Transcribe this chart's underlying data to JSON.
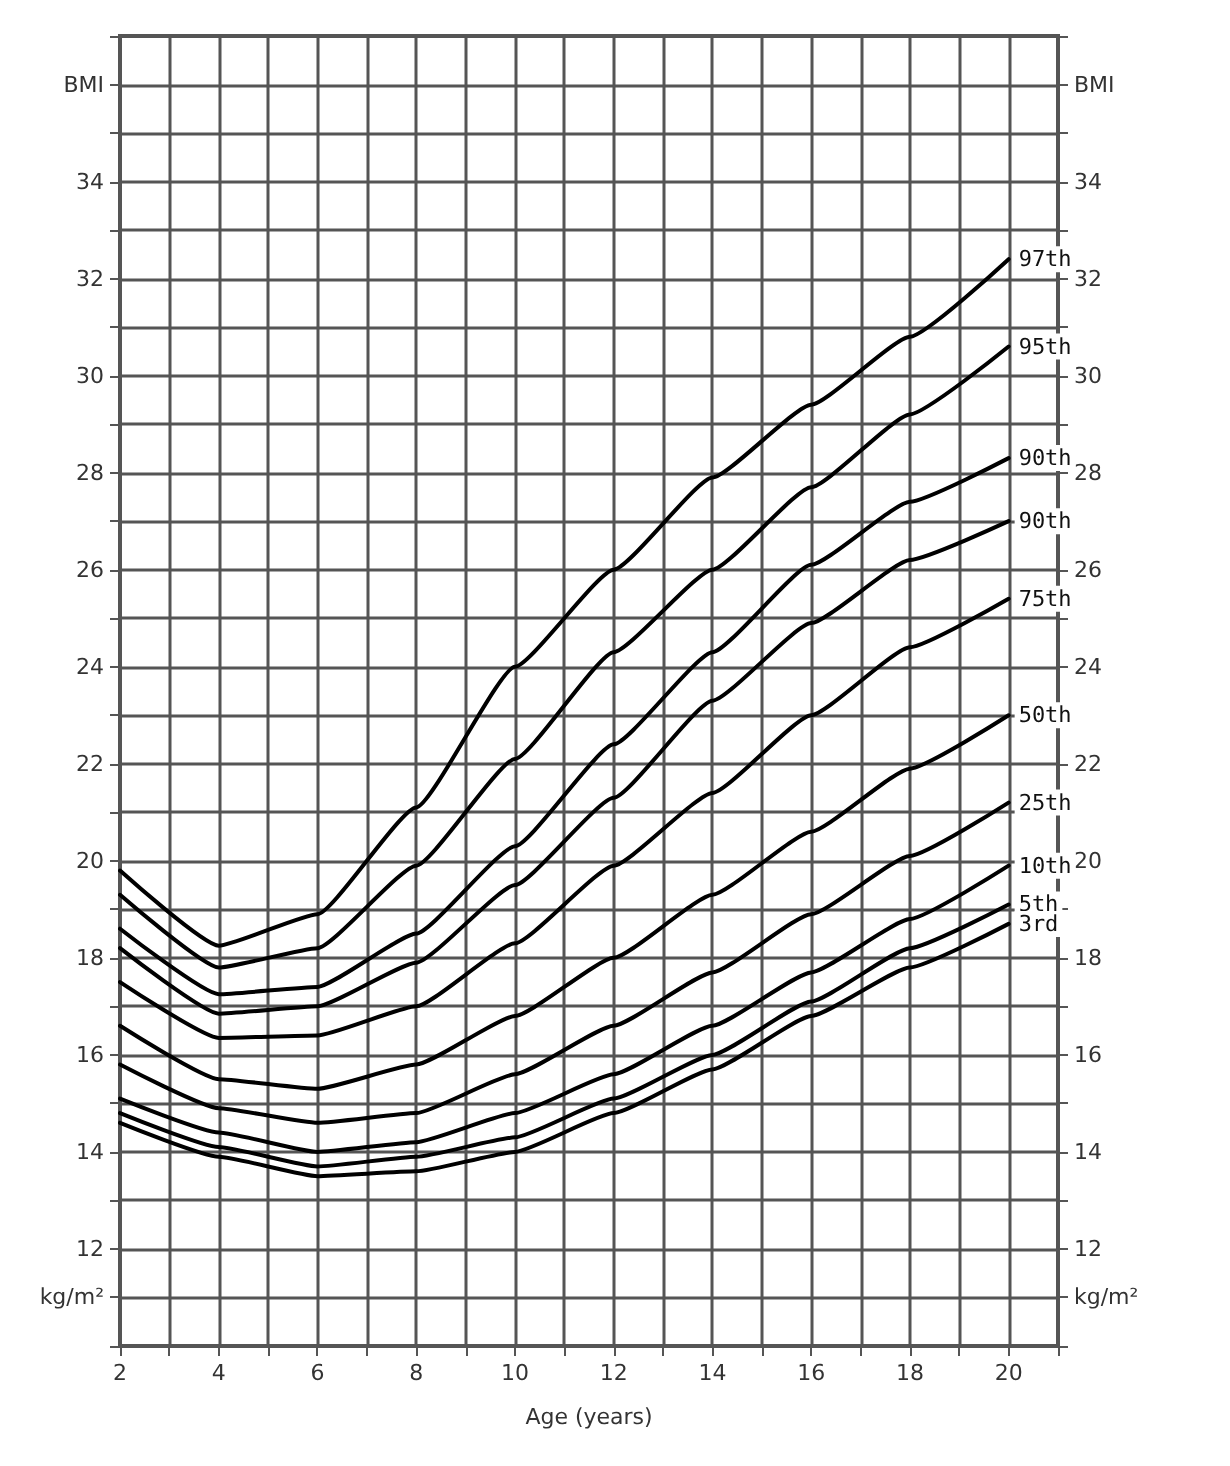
{
  "chart_data": {
    "type": "line",
    "xlabel": "Age (years)",
    "x": [
      2,
      4,
      6,
      8,
      10,
      12,
      14,
      16,
      18,
      20
    ],
    "series": [
      {
        "name": "97th",
        "color": "#000000",
        "values": [
          19.8,
          18.25,
          18.9,
          21.1,
          24.0,
          26.0,
          27.9,
          29.4,
          30.8,
          32.4
        ]
      },
      {
        "name": "95th",
        "color": "#000000",
        "values": [
          19.3,
          17.8,
          18.2,
          19.9,
          22.1,
          24.3,
          26.0,
          27.7,
          29.2,
          30.6
        ]
      },
      {
        "name": "90th",
        "color": "#000000",
        "values": [
          18.6,
          17.25,
          17.4,
          18.5,
          20.3,
          22.4,
          24.3,
          26.1,
          27.4,
          28.3
        ]
      },
      {
        "name": "90th",
        "color": "#000000",
        "values": [
          18.2,
          16.85,
          17.0,
          17.9,
          19.5,
          21.3,
          23.3,
          24.9,
          26.2,
          27.0
        ]
      },
      {
        "name": "75th",
        "color": "#000000",
        "values": [
          17.5,
          16.35,
          16.4,
          17.0,
          18.3,
          19.9,
          21.4,
          23.0,
          24.4,
          25.4
        ]
      },
      {
        "name": "50th",
        "color": "#000000",
        "values": [
          16.6,
          15.5,
          15.3,
          15.8,
          16.8,
          18.0,
          19.3,
          20.6,
          21.9,
          23.0
        ]
      },
      {
        "name": "25th",
        "color": "#000000",
        "values": [
          15.8,
          14.9,
          14.6,
          14.8,
          15.6,
          16.6,
          17.7,
          18.9,
          20.1,
          21.2
        ]
      },
      {
        "name": "10th",
        "color": "#000000",
        "values": [
          15.1,
          14.4,
          14.0,
          14.2,
          14.8,
          15.6,
          16.6,
          17.7,
          18.8,
          19.9
        ]
      },
      {
        "name": "5th",
        "color": "#000000",
        "values": [
          14.8,
          14.1,
          13.7,
          13.9,
          14.3,
          15.1,
          16.0,
          17.1,
          18.2,
          19.1
        ]
      },
      {
        "name": "3rd",
        "color": "#000000",
        "values": [
          14.6,
          13.9,
          13.5,
          13.6,
          14.0,
          14.8,
          15.7,
          16.8,
          17.8,
          18.7
        ]
      }
    ],
    "xlim": [
      2,
      21
    ],
    "xticks": [
      2,
      {
        "value": 3,
        "label": null
      },
      4,
      {
        "value": 5,
        "label": null
      },
      6,
      {
        "value": 7,
        "label": null
      },
      8,
      {
        "value": 9,
        "label": null
      },
      10,
      {
        "value": 11,
        "label": null
      },
      12,
      {
        "value": 13,
        "label": null
      },
      14,
      {
        "value": 15,
        "label": null
      },
      16,
      {
        "value": 17,
        "label": null
      },
      18,
      {
        "value": 19,
        "label": null
      },
      20,
      {
        "value": 21,
        "label": null
      }
    ],
    "ylim": [
      10,
      37
    ],
    "yticks": [
      {
        "value": 10,
        "label": null
      },
      {
        "value": 11,
        "label": "kg/m²"
      },
      12,
      {
        "value": 13,
        "label": null
      },
      14,
      {
        "value": 15,
        "label": null
      },
      16,
      {
        "value": 17,
        "label": null
      },
      18,
      {
        "value": 19,
        "label": null
      },
      20,
      {
        "value": 21,
        "label": null
      },
      22,
      {
        "value": 23,
        "label": null
      },
      24,
      {
        "value": 25,
        "label": null
      },
      26,
      {
        "value": 27,
        "label": null
      },
      28,
      {
        "value": 29,
        "label": null
      },
      30,
      {
        "value": 31,
        "label": null
      },
      32,
      {
        "value": 33,
        "label": null
      },
      34,
      {
        "value": 35,
        "label": null
      },
      {
        "value": 36,
        "label": "BMI"
      },
      {
        "value": 37,
        "label": null
      }
    ],
    "y2lim": [
      10,
      37
    ],
    "y2ticks": [
      {
        "value": 10,
        "label": null
      },
      {
        "value": 11,
        "label": "kg/m²"
      },
      12,
      {
        "value": 13,
        "label": null
      },
      14,
      {
        "value": 15,
        "label": null
      },
      16,
      {
        "value": 17,
        "label": null
      },
      18,
      {
        "value": 19,
        "label": null
      },
      20,
      {
        "value": 21,
        "label": null
      },
      22,
      {
        "value": 23,
        "label": null
      },
      24,
      {
        "value": 25,
        "label": null
      },
      26,
      {
        "value": 27,
        "label": null
      },
      28,
      {
        "value": 29,
        "label": null
      },
      30,
      {
        "value": 31,
        "label": null
      },
      32,
      {
        "value": 33,
        "label": null
      },
      34,
      {
        "value": 35,
        "label": null
      },
      {
        "value": 36,
        "label": "BMI"
      },
      {
        "value": 37,
        "label": null
      }
    ],
    "grid": true,
    "legend": false,
    "marker": "none",
    "line_style": "solid"
  }
}
